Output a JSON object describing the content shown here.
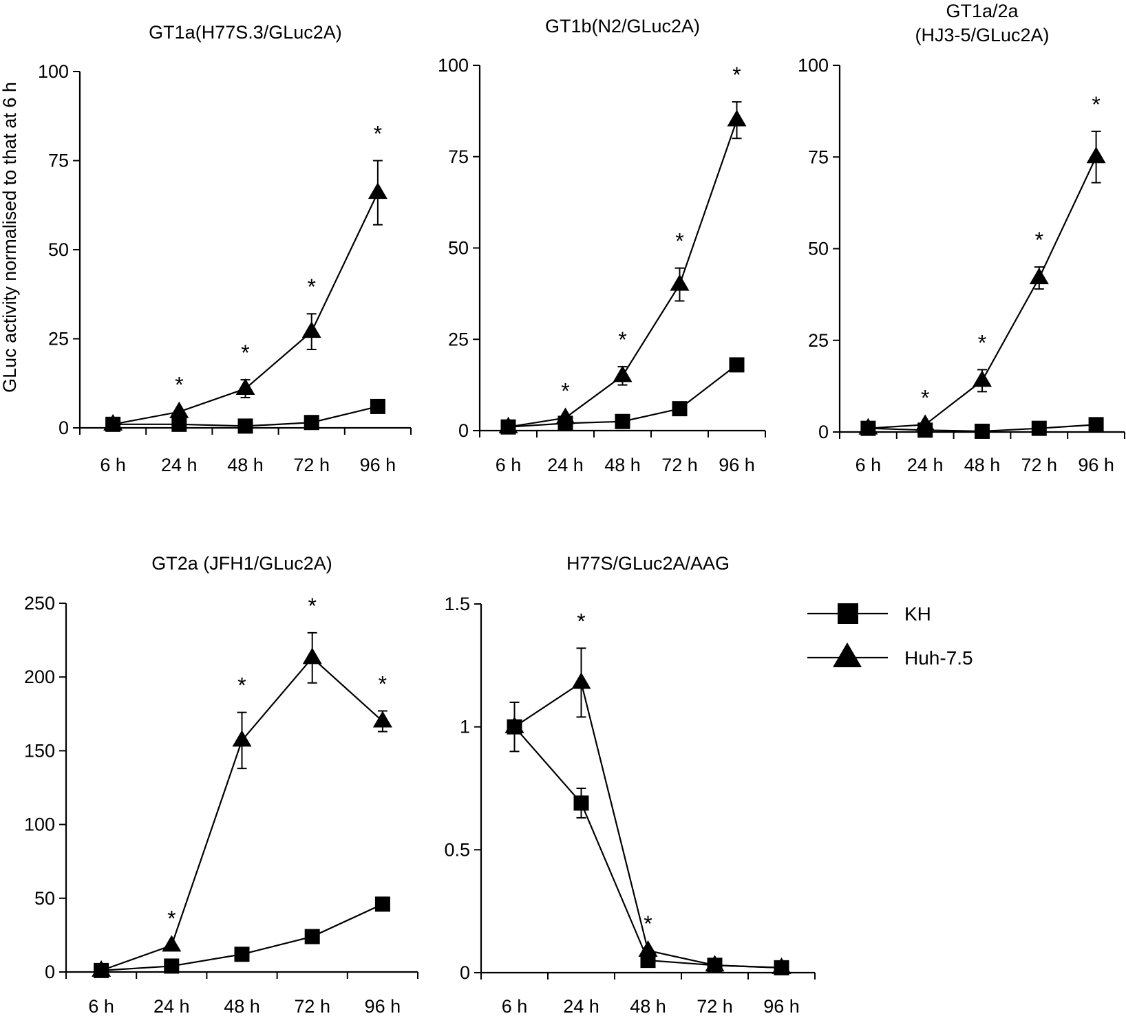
{
  "figure": {
    "ylabel": "GLuc activity normalised to  that at 6 h",
    "colors": {
      "line": "#000000",
      "background": "#ffffff"
    },
    "legend": [
      {
        "label": "KH",
        "marker": "square"
      },
      {
        "label": "Huh-7.5",
        "marker": "triangle"
      }
    ]
  },
  "chart_data": [
    {
      "id": "gt1a",
      "type": "line",
      "title": [
        "GT1a(H77S.3/GLuc2A)"
      ],
      "categories": [
        "6 h",
        "24 h",
        "48 h",
        "72 h",
        "96 h"
      ],
      "ylim": [
        0,
        100
      ],
      "yticks": [
        0,
        25,
        50,
        75,
        100
      ],
      "series": [
        {
          "name": "KH",
          "marker": "square",
          "values": [
            1,
            1,
            0.5,
            1.5,
            6
          ],
          "errors": [
            0,
            0,
            0,
            0,
            0
          ]
        },
        {
          "name": "Huh-7.5",
          "marker": "triangle",
          "values": [
            1,
            4.5,
            11,
            27,
            66
          ],
          "errors": [
            0,
            0,
            2.5,
            5,
            9
          ]
        }
      ],
      "significance": [
        "",
        "*",
        "*",
        "*",
        "*"
      ]
    },
    {
      "id": "gt1b",
      "type": "line",
      "title": [
        "GT1b(N2/GLuc2A)"
      ],
      "categories": [
        "6 h",
        "24 h",
        "48 h",
        "72 h",
        "96 h"
      ],
      "ylim": [
        0,
        100
      ],
      "yticks": [
        0,
        25,
        50,
        75,
        100
      ],
      "series": [
        {
          "name": "KH",
          "marker": "square",
          "values": [
            1,
            2,
            2.5,
            6,
            18
          ],
          "errors": [
            0,
            0,
            0,
            0,
            0
          ]
        },
        {
          "name": "Huh-7.5",
          "marker": "triangle",
          "values": [
            1,
            3.5,
            15,
            40,
            85
          ],
          "errors": [
            0,
            0,
            2.5,
            4.5,
            5
          ]
        }
      ],
      "significance": [
        "",
        "*",
        "*",
        "*",
        "*"
      ]
    },
    {
      "id": "gt1a2a",
      "type": "line",
      "title": [
        "GT1a/2a",
        "(HJ3-5/GLuc2A)"
      ],
      "categories": [
        "6 h",
        "24 h",
        "48 h",
        "72 h",
        "96 h"
      ],
      "ylim": [
        0,
        100
      ],
      "yticks": [
        0,
        25,
        50,
        75,
        100
      ],
      "series": [
        {
          "name": "KH",
          "marker": "square",
          "values": [
            1,
            0.5,
            0.2,
            1,
            2
          ],
          "errors": [
            0,
            0,
            0,
            0,
            0
          ]
        },
        {
          "name": "Huh-7.5",
          "marker": "triangle",
          "values": [
            1,
            2,
            14,
            42,
            75
          ],
          "errors": [
            0,
            0,
            3,
            3,
            7
          ]
        }
      ],
      "significance": [
        "",
        "*",
        "*",
        "*",
        "*"
      ]
    },
    {
      "id": "gt2a",
      "type": "line",
      "title": [
        "GT2a (JFH1/GLuc2A)"
      ],
      "categories": [
        "6 h",
        "24 h",
        "48 h",
        "72 h",
        "96 h"
      ],
      "ylim": [
        0,
        250
      ],
      "yticks": [
        0,
        50,
        100,
        150,
        200,
        250
      ],
      "series": [
        {
          "name": "KH",
          "marker": "square",
          "values": [
            1,
            4,
            12,
            24,
            46
          ],
          "errors": [
            0,
            0,
            0,
            0,
            0
          ]
        },
        {
          "name": "Huh-7.5",
          "marker": "triangle",
          "values": [
            1,
            18,
            157,
            213,
            170
          ],
          "errors": [
            0,
            0,
            19,
            17,
            7
          ]
        }
      ],
      "significance": [
        "",
        "*",
        "*",
        "*",
        "*"
      ]
    },
    {
      "id": "aag",
      "type": "line",
      "title": [
        "H77S/GLuc2A/AAG"
      ],
      "categories": [
        "6 h",
        "24 h",
        "48 h",
        "72 h",
        "96 h"
      ],
      "ylim": [
        0,
        1.5
      ],
      "yticks": [
        0,
        0.5,
        1,
        1.5
      ],
      "series": [
        {
          "name": "KH",
          "marker": "square",
          "values": [
            1,
            0.69,
            0.05,
            0.03,
            0.02
          ],
          "errors": [
            0.1,
            0.06,
            0,
            0,
            0
          ]
        },
        {
          "name": "Huh-7.5",
          "marker": "triangle",
          "values": [
            1,
            1.18,
            0.09,
            0.03,
            0.02
          ],
          "errors": [
            0,
            0.14,
            0,
            0,
            0
          ]
        }
      ],
      "significance": [
        "",
        "*",
        "*",
        "",
        ""
      ]
    }
  ]
}
